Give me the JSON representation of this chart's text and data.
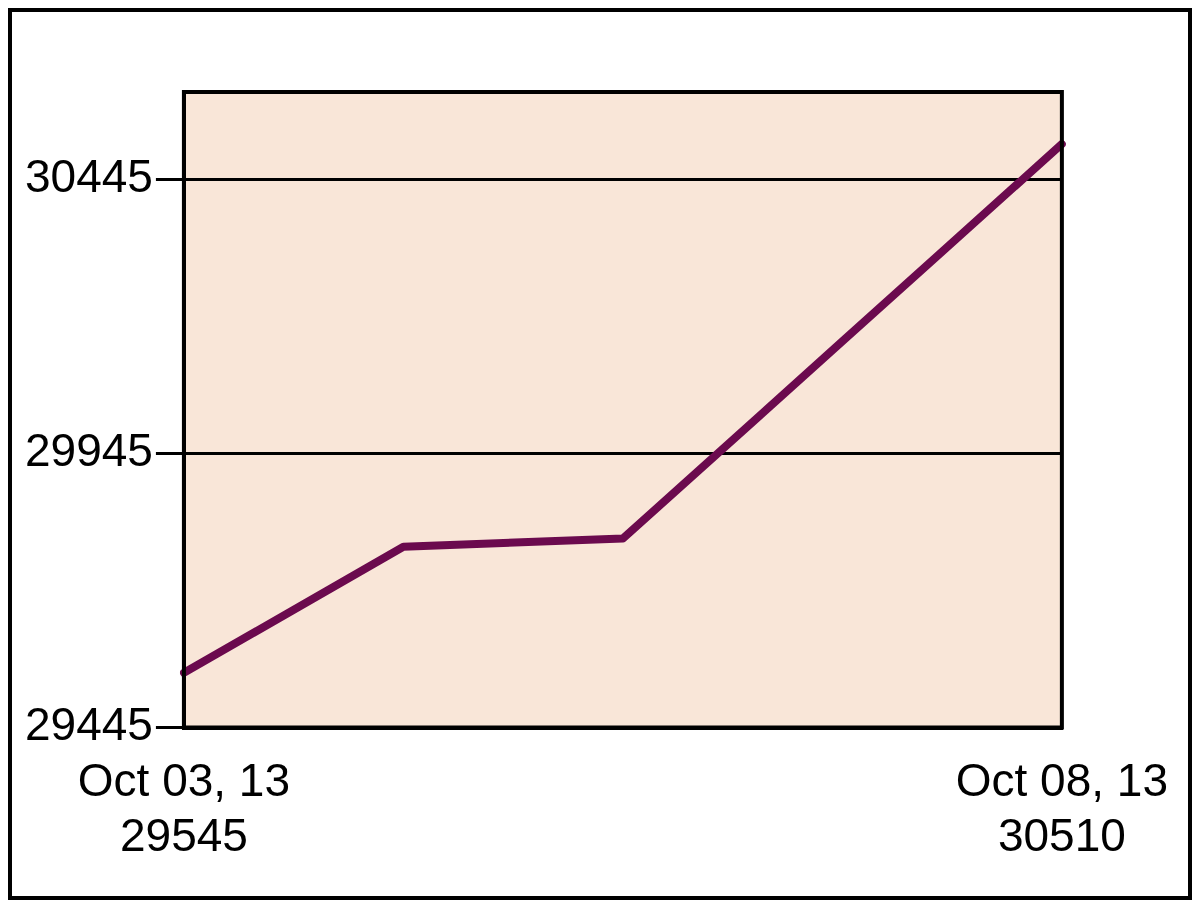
{
  "chart_data": {
    "type": "line",
    "categories": [
      "Oct 03, 13",
      null,
      null,
      null,
      "Oct 08, 13"
    ],
    "series": [
      {
        "color": "#6b0a4e",
        "values": [
          29545,
          29775,
          29790,
          30150,
          30510
        ],
        "value_labels": [
          "29545",
          null,
          null,
          null,
          "30510"
        ]
      }
    ],
    "ylim": [
      29445,
      30605
    ],
    "yticks": [
      29445,
      29945,
      30445
    ],
    "grid": "y",
    "legend": false,
    "marker": "none",
    "line_style": "solid"
  }
}
